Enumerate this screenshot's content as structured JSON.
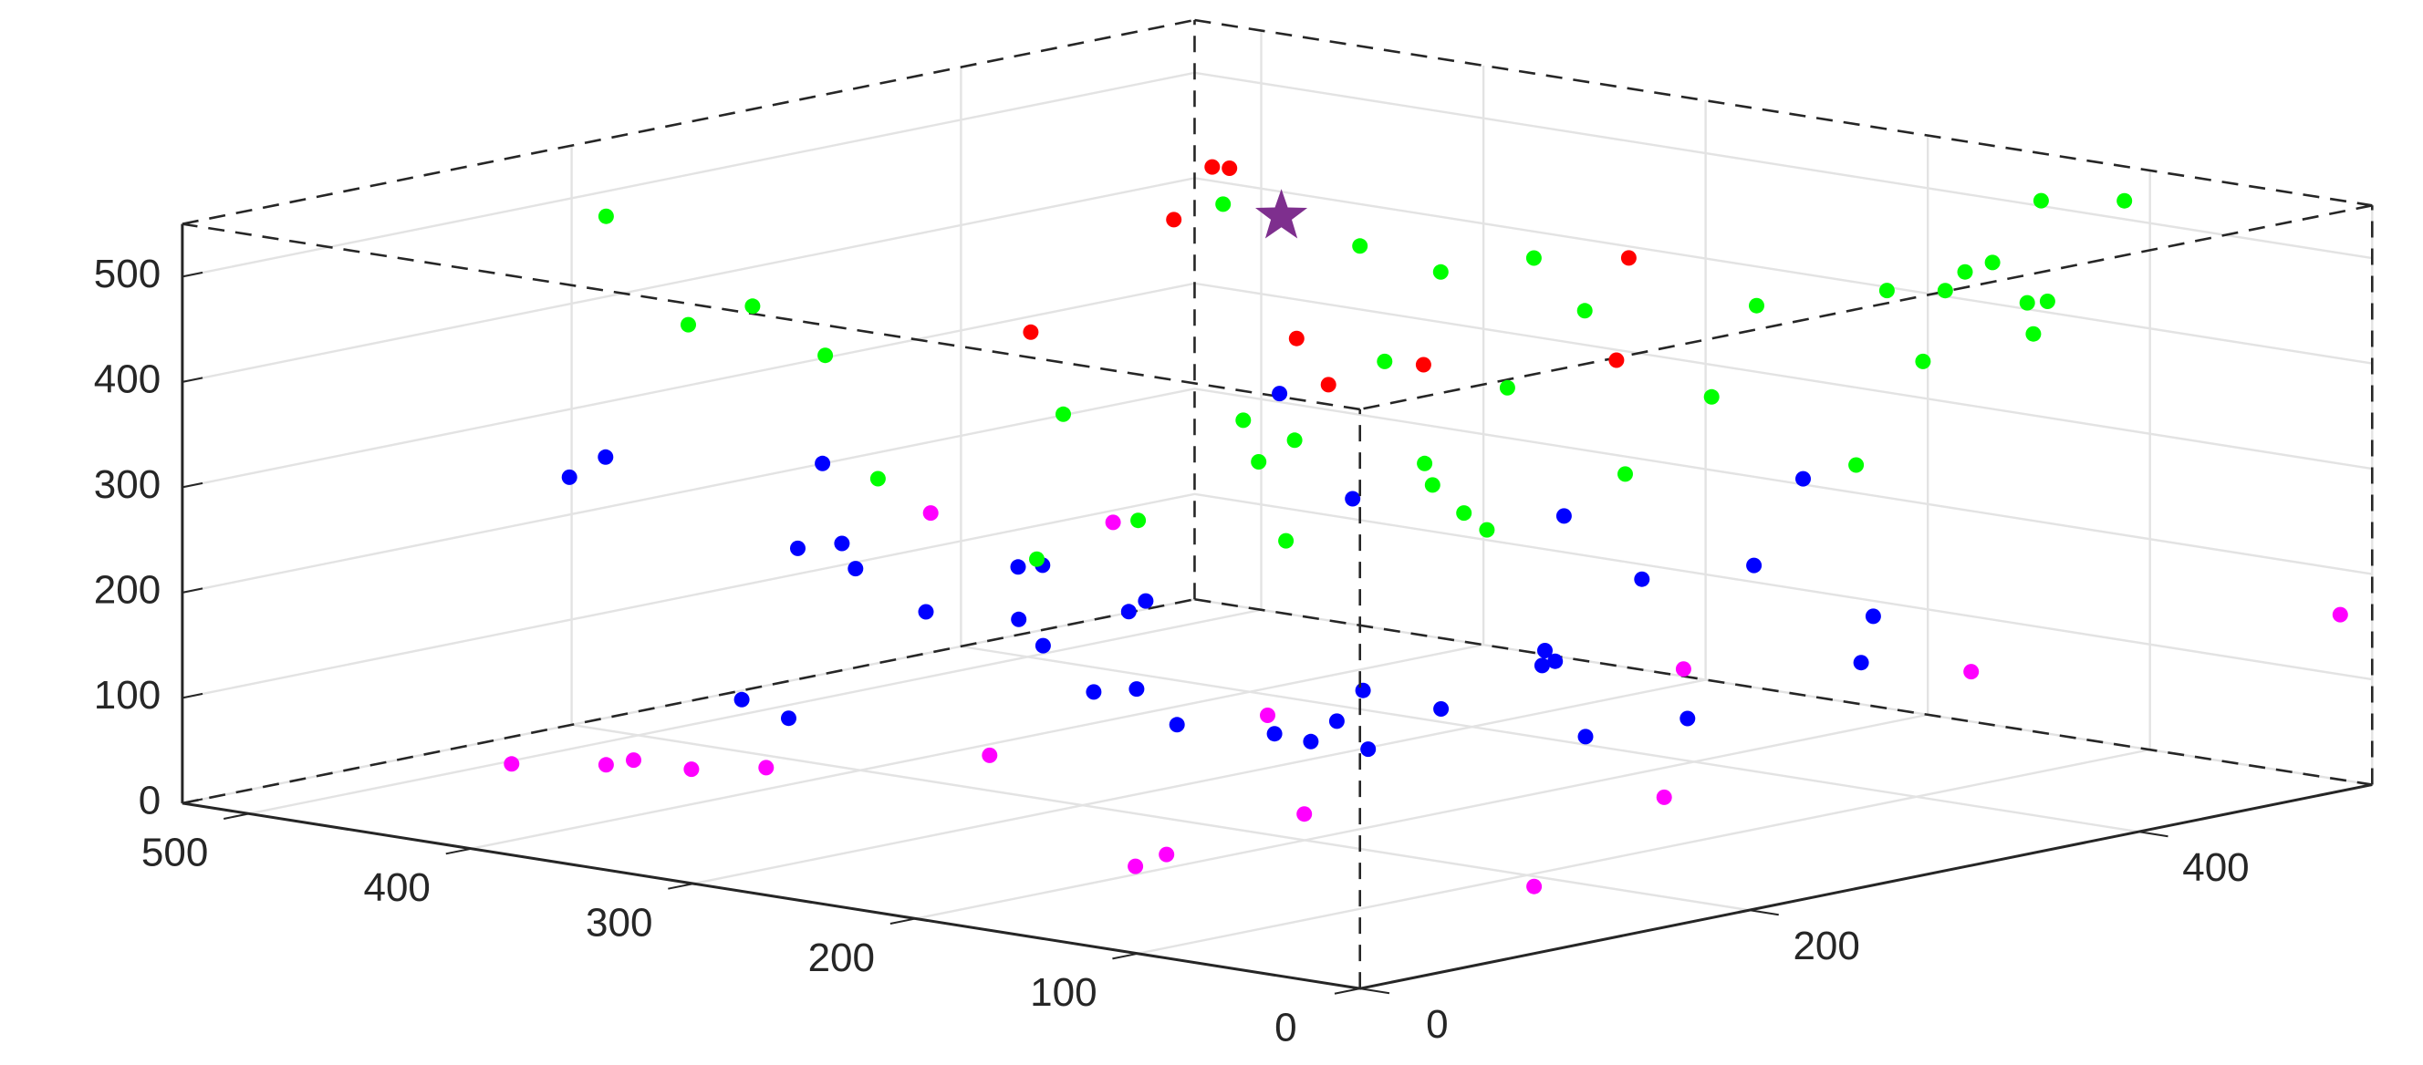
{
  "chart_data": {
    "type": "scatter3d",
    "grid": true,
    "xlim": [
      0,
      530
    ],
    "xticks": [
      0,
      100,
      200,
      300,
      400,
      500
    ],
    "ylim": [
      0,
      520
    ],
    "yticks": [
      0,
      200,
      400
    ],
    "zlim": [
      0,
      550
    ],
    "zticks": [
      0,
      100,
      200,
      300,
      400,
      500
    ],
    "series": [
      {
        "color": "#ff00ff",
        "marker": "circle",
        "x": [
          430,
          405,
          404,
          378,
          361,
          520,
          320,
          515,
          144,
          151,
          300,
          167,
          18,
          97,
          253,
          177,
          10
        ],
        "y": [
          55,
          75,
          88,
          88,
          107,
          373,
          175,
          461,
          49,
          73,
          295,
          162,
          110,
          267,
          455,
          516,
          515
        ],
        "z": [
          50,
          50,
          50,
          50,
          50,
          140,
          50,
          100,
          50,
          50,
          50,
          50,
          50,
          50,
          50,
          50,
          160
        ]
      },
      {
        "color": "#0000ff",
        "marker": "circle",
        "x": [
          524,
          527,
          517,
          430,
          425,
          390,
          318,
          351,
          347,
          285,
          246,
          267,
          276,
          294,
          272,
          175,
          168,
          113,
          77,
          58,
          77,
          109,
          34,
          476,
          352,
          66,
          113,
          95,
          97,
          8,
          277,
          178,
          5,
          167,
          250,
          18,
          73
        ],
        "y": [
          192,
          214,
          314,
          202,
          219,
          186,
          140,
          225,
          233,
          150,
          118,
          186,
          205,
          18,
          17,
          63,
          77,
          35,
          44,
          41,
          76,
          126,
          43,
          502,
          398,
          117,
          224,
          202,
          211,
          125,
          421,
          348,
          174,
          393,
          513,
          278,
          347
        ],
        "z": [
          240,
          250,
          210,
          200,
          200,
          200,
          200,
          200,
          200,
          200,
          200,
          200,
          200,
          170,
          160,
          200,
          200,
          200,
          200,
          200,
          200,
          200,
          200,
          220,
          200,
          200,
          200,
          200,
          200,
          190,
          200,
          200,
          190,
          200,
          210,
          200,
          200
        ]
      },
      {
        "color": "#00ff00",
        "marker": "circle",
        "x": [
          525,
          474,
          481,
          401,
          365,
          399,
          290,
          247,
          184,
          490,
          346,
          290,
          308,
          403,
          384,
          246,
          217,
          350,
          174,
          147,
          320,
          344,
          265,
          182,
          257,
          228,
          135,
          214,
          182,
          186,
          178,
          163,
          150,
          149,
          140,
          149,
          108
        ],
        "y": [
          212,
          196,
          237,
          183,
          169,
          303,
          165,
          168,
          172,
          489,
          335,
          279,
          318,
          460,
          451,
          314,
          285,
          441,
          252,
          233,
          441,
          482,
          418,
          344,
          474,
          464,
          409,
          515,
          497,
          513,
          514,
          511,
          514,
          516,
          513,
          520,
          516
        ],
        "z": [
          480,
          400,
          400,
          400,
          300,
          300,
          250,
          300,
          300,
          400,
          300,
          300,
          300,
          400,
          300,
          300,
          300,
          400,
          300,
          300,
          300,
          400,
          400,
          300,
          300,
          400,
          300,
          400,
          350,
          410,
          430,
          445,
          410,
          380,
          415,
          505,
          520
        ]
      },
      {
        "color": "#ff0000",
        "marker": "circle",
        "x": [
          381,
          375,
          351,
          312,
          237,
          171,
          172,
          129,
          254
        ],
        "y": [
          359,
          361,
          305,
          187,
          238,
          179,
          229,
          279,
          428
        ],
        "z": [
          520,
          520,
          500,
          450,
          450,
          450,
          450,
          450,
          450
        ]
      },
      {
        "color": "#7e2f8e",
        "marker": "star",
        "x": [
          328
        ],
        "y": [
          334
        ],
        "z": [
          500
        ]
      }
    ]
  }
}
